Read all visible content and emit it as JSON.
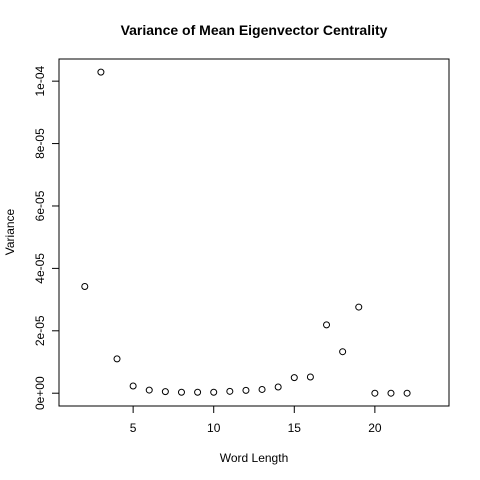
{
  "chart_data": {
    "type": "scatter",
    "title": "Variance of Mean Eigenvector Centrality",
    "xlabel": "Word Length",
    "ylabel": "Variance",
    "xlim": [
      0.4,
      24.6
    ],
    "ylim": [
      -4.1e-06,
      0.0001071
    ],
    "x_ticks": [
      5,
      10,
      15,
      20
    ],
    "y_ticks": [
      0,
      2e-05,
      4e-05,
      6e-05,
      8e-05,
      0.0001
    ],
    "x_tick_labels": [
      "5",
      "10",
      "15",
      "20"
    ],
    "y_tick_labels": [
      "0e+00",
      "2e-05",
      "4e-05",
      "6e-05",
      "8e-05",
      "1e-04"
    ],
    "marker": "open-circle",
    "grid": false,
    "legend": "none",
    "x": [
      2,
      3,
      4,
      5,
      6,
      7,
      8,
      9,
      10,
      11,
      12,
      13,
      14,
      15,
      16,
      17,
      18,
      19,
      20,
      21,
      22
    ],
    "y": [
      3.42e-05,
      0.0001029,
      1.1e-05,
      2.3e-06,
      1e-06,
      5e-07,
      3e-07,
      3e-07,
      3e-07,
      6e-07,
      9e-07,
      1.2e-06,
      2e-06,
      5e-06,
      5.2e-06,
      2.19e-05,
      1.33e-05,
      2.76e-05,
      0,
      0,
      0
    ]
  }
}
